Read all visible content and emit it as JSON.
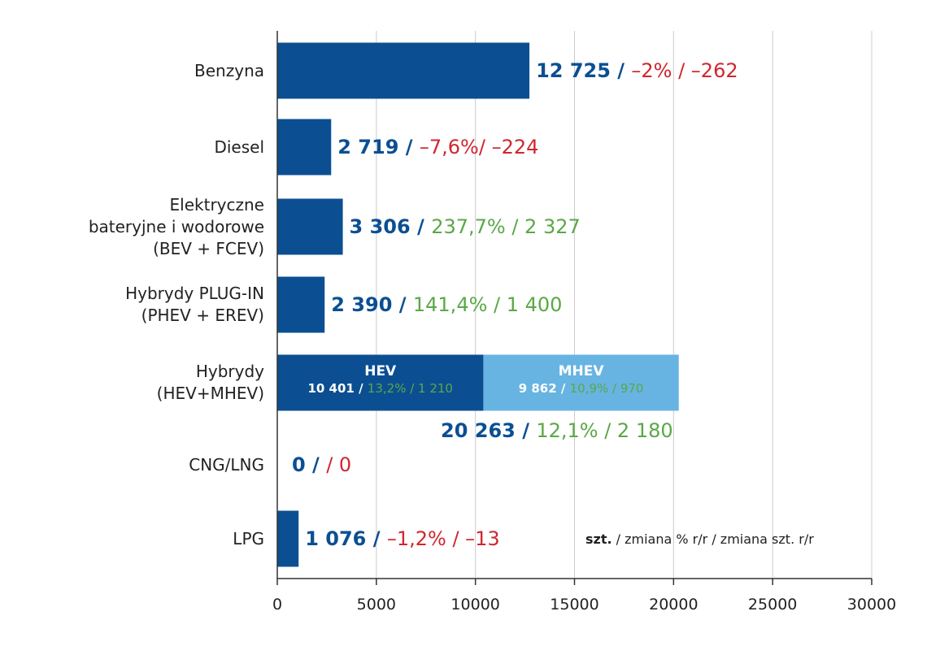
{
  "colors": {
    "blue": "#0b4f92",
    "light_blue": "#67b4e2",
    "red": "#d0262f",
    "green": "#5aa846",
    "grid": "#cccccc"
  },
  "chart_data": {
    "type": "bar",
    "orientation": "horizontal",
    "xlim": [
      0,
      30000
    ],
    "xticks": [
      "0",
      "5000",
      "10000",
      "15000",
      "20000",
      "25000",
      "30000"
    ],
    "grid": true,
    "legend_note": {
      "bold": "szt.",
      "rest": " / zmiana % r/r / zmiana szt. r/r"
    },
    "categories": [
      {
        "label": "Benzyna",
        "value": 12725,
        "parts": [
          {
            "t": "12 725 / ",
            "c": "blue",
            "b": true
          },
          {
            "t": "–2% / –262",
            "c": "red"
          }
        ]
      },
      {
        "label": "Diesel",
        "value": 2719,
        "parts": [
          {
            "t": "2 719 / ",
            "c": "blue",
            "b": true
          },
          {
            "t": "–7,6%/ –224",
            "c": "red"
          }
        ]
      },
      {
        "label": "Elektryczne\nbateryjne i wodorowe\n(BEV + FCEV)",
        "value": 3306,
        "parts": [
          {
            "t": "3 306 / ",
            "c": "blue",
            "b": true
          },
          {
            "t": "237,7% / 2 327",
            "c": "green"
          }
        ]
      },
      {
        "label": "Hybrydy PLUG-IN\n(PHEV + EREV)",
        "value": 2390,
        "parts": [
          {
            "t": "2 390 / ",
            "c": "blue",
            "b": true
          },
          {
            "t": "141,4% / 1 400",
            "c": "green"
          }
        ]
      },
      {
        "label": "Hybrydy\n(HEV+MHEV)",
        "value": 20263,
        "stacked": [
          {
            "name": "HEV",
            "value": 10401,
            "color": "blue",
            "sub": [
              {
                "t": "10 401 / ",
                "c": "white",
                "b": true
              },
              {
                "t": "13,2% / 1 210",
                "c": "green"
              }
            ]
          },
          {
            "name": "MHEV",
            "value": 9862,
            "color": "light_blue",
            "sub": [
              {
                "t": "9 862 / ",
                "c": "white",
                "b": true
              },
              {
                "t": "10,9% / 970",
                "c": "green"
              }
            ]
          }
        ],
        "parts": [
          {
            "t": "20 263 / ",
            "c": "blue",
            "b": true
          },
          {
            "t": "12,1% / 2 180",
            "c": "green"
          }
        ]
      },
      {
        "label": "CNG/LNG",
        "value": 0,
        "parts": [
          {
            "t": "0 /   ",
            "c": "blue",
            "b": true
          },
          {
            "t": "/ 0",
            "c": "red"
          }
        ]
      },
      {
        "label": "LPG",
        "value": 1076,
        "parts": [
          {
            "t": "1 076 / ",
            "c": "blue",
            "b": true
          },
          {
            "t": "–1,2% / –13",
            "c": "red"
          }
        ]
      }
    ]
  }
}
